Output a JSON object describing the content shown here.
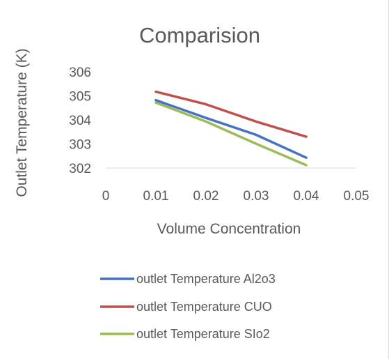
{
  "chart_data": {
    "type": "line",
    "title": "Comparision",
    "xlabel": "Volume Concentration",
    "ylabel": "Outlet Temperature (K)",
    "xlim": [
      0,
      0.05
    ],
    "ylim": [
      302,
      306
    ],
    "x_ticks": [
      "0",
      "0.01",
      "0.02",
      "0.03",
      "0.04",
      "0.05"
    ],
    "y_ticks": [
      "302",
      "303",
      "304",
      "305",
      "306"
    ],
    "x": [
      0.01,
      0.02,
      0.03,
      0.04
    ],
    "grid": false,
    "legend_position": "bottom",
    "series": [
      {
        "name": "outlet Temperature Al2o3",
        "color": "#4472c4",
        "values": [
          304.82,
          304.08,
          303.38,
          302.43
        ]
      },
      {
        "name": "outlet Temperature CUO",
        "color": "#c0504d",
        "values": [
          305.17,
          304.65,
          303.93,
          303.3
        ]
      },
      {
        "name": "outlet Temperature SIo2",
        "color": "#9bbb59",
        "values": [
          304.72,
          303.93,
          303.01,
          302.12
        ]
      }
    ]
  }
}
